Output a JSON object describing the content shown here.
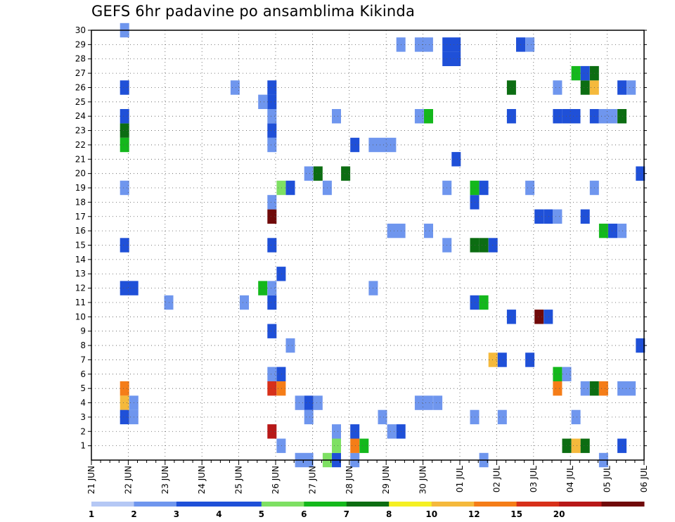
{
  "chart_data": {
    "type": "heatmap",
    "title": "GEFS 6hr padavine po ansamblima Kikinda",
    "x_tick_labels": [
      "21 JUN",
      "22 JUN",
      "23 JUN",
      "24 JUN",
      "25 JUN",
      "26 JUN",
      "27 JUN",
      "28 JUN",
      "29 JUN",
      "30 JUN",
      "01 JUL",
      "02 JUL",
      "03 JUL",
      "04 JUL",
      "05 JUL",
      "06 JUL"
    ],
    "x_ticks_per_day": 4,
    "x_range_steps": [
      0,
      60
    ],
    "y_tick_labels": [
      "1",
      "2",
      "3",
      "4",
      "5",
      "6",
      "7",
      "8",
      "9",
      "10",
      "11",
      "12",
      "13",
      "14",
      "15",
      "16",
      "17",
      "18",
      "19",
      "20",
      "21",
      "22",
      "23",
      "24",
      "25",
      "26",
      "27",
      "28",
      "29",
      "30"
    ],
    "grid": true,
    "color_scale": {
      "labels": [
        "1",
        "2",
        "3",
        "4",
        "5",
        "6",
        "7",
        "8",
        "10",
        "12",
        "15",
        "20"
      ],
      "colors": [
        "#b5c8f5",
        "#6f96ee",
        "#1f50d8",
        "#1f50d8",
        "#7ee063",
        "#14b81c",
        "#0c6d12",
        "#f5f022",
        "#f5b93c",
        "#f57d18",
        "#d8301a",
        "#b81818",
        "#700a0a"
      ]
    },
    "cells": [
      {
        "t": 3.6,
        "m": 30,
        "c": 1,
        "w": 1
      },
      {
        "t": 3.6,
        "m": 5,
        "c": 9
      },
      {
        "t": 3.6,
        "m": 4,
        "c": 8
      },
      {
        "t": 3.6,
        "m": 3,
        "c": 2
      },
      {
        "t": 3.6,
        "m": 12,
        "c": 3,
        "w": 2
      },
      {
        "t": 3.6,
        "m": 15,
        "c": 3
      },
      {
        "t": 3.6,
        "m": 19,
        "c": 1
      },
      {
        "t": 3.6,
        "m": 22,
        "c": 5
      },
      {
        "t": 3.6,
        "m": 23,
        "c": 6
      },
      {
        "t": 3.6,
        "m": 24,
        "c": 3
      },
      {
        "t": 3.6,
        "m": 26,
        "c": 2
      },
      {
        "t": 4.6,
        "m": 4,
        "c": 1
      },
      {
        "t": 4.6,
        "m": 3,
        "c": 1
      },
      {
        "t": 8.4,
        "m": 11,
        "c": 1
      },
      {
        "t": 15.6,
        "m": 26,
        "c": 1
      },
      {
        "t": 16.6,
        "m": 11,
        "c": 1
      },
      {
        "t": 18.6,
        "m": 12,
        "c": 5
      },
      {
        "t": 18.6,
        "m": 25,
        "c": 1
      },
      {
        "t": 19.6,
        "m": 2,
        "c": 11
      },
      {
        "t": 19.6,
        "m": 5,
        "c": 10
      },
      {
        "t": 19.6,
        "m": 6,
        "c": 1
      },
      {
        "t": 19.6,
        "m": 9,
        "c": 2
      },
      {
        "t": 19.6,
        "m": 11,
        "c": 3
      },
      {
        "t": 19.6,
        "m": 12,
        "c": 1
      },
      {
        "t": 19.6,
        "m": 15,
        "c": 2
      },
      {
        "t": 19.6,
        "m": 17,
        "c": 12
      },
      {
        "t": 19.6,
        "m": 18,
        "c": 1
      },
      {
        "t": 19.6,
        "m": 22,
        "c": 1
      },
      {
        "t": 19.6,
        "m": 23,
        "c": 2
      },
      {
        "t": 19.6,
        "m": 24,
        "c": 1
      },
      {
        "t": 19.6,
        "m": 25,
        "c": 3
      },
      {
        "t": 19.6,
        "m": 26,
        "c": 3
      },
      {
        "t": 20.6,
        "m": 1,
        "c": 1
      },
      {
        "t": 20.6,
        "m": 5,
        "c": 9
      },
      {
        "t": 20.6,
        "m": 6,
        "c": 2
      },
      {
        "t": 20.6,
        "m": 13,
        "c": 3
      },
      {
        "t": 20.6,
        "m": 19,
        "c": 4
      },
      {
        "t": 21.6,
        "m": 8,
        "c": 1
      },
      {
        "t": 21.6,
        "m": 19,
        "c": 2
      },
      {
        "t": 22.6,
        "m": 0,
        "c": 1,
        "w": 2
      },
      {
        "t": 22.6,
        "m": 4,
        "c": 1
      },
      {
        "t": 23.6,
        "m": 4,
        "c": 2
      },
      {
        "t": 24.6,
        "m": 4,
        "c": 1
      },
      {
        "t": 23.6,
        "m": 3,
        "c": 1
      },
      {
        "t": 23.6,
        "m": 20,
        "c": 1
      },
      {
        "t": 24.6,
        "m": 20,
        "c": 6
      },
      {
        "t": 25.6,
        "m": 0,
        "c": 4
      },
      {
        "t": 25.6,
        "m": 19,
        "c": 1
      },
      {
        "t": 26.6,
        "m": 0,
        "c": 3
      },
      {
        "t": 26.6,
        "m": 1,
        "c": 4
      },
      {
        "t": 26.6,
        "m": 2,
        "c": 1
      },
      {
        "t": 26.6,
        "m": 24,
        "c": 1
      },
      {
        "t": 27.6,
        "m": 20,
        "c": 6
      },
      {
        "t": 28.6,
        "m": 0,
        "c": 1
      },
      {
        "t": 28.6,
        "m": 1,
        "c": 9
      },
      {
        "t": 28.6,
        "m": 2,
        "c": 2
      },
      {
        "t": 28.6,
        "m": 22,
        "c": 2
      },
      {
        "t": 29.6,
        "m": 1,
        "c": 5
      },
      {
        "t": 30.6,
        "m": 12,
        "c": 1
      },
      {
        "t": 30.6,
        "m": 22,
        "c": 1,
        "w": 3
      },
      {
        "t": 31.6,
        "m": 3,
        "c": 1
      },
      {
        "t": 32.6,
        "m": 2,
        "c": 1
      },
      {
        "t": 32.6,
        "m": 16,
        "c": 1,
        "w": 2
      },
      {
        "t": 33.6,
        "m": 2,
        "c": 3
      },
      {
        "t": 33.6,
        "m": 29,
        "c": 1
      },
      {
        "t": 35.6,
        "m": 4,
        "c": 1,
        "w": 2
      },
      {
        "t": 35.6,
        "m": 24,
        "c": 1
      },
      {
        "t": 35.6,
        "m": 29,
        "c": 1,
        "w": 2
      },
      {
        "t": 36.6,
        "m": 24,
        "c": 5
      },
      {
        "t": 36.6,
        "m": 16,
        "c": 1
      },
      {
        "t": 37.6,
        "m": 4,
        "c": 1
      },
      {
        "t": 38.6,
        "m": 29,
        "c": 3,
        "w": 2
      },
      {
        "t": 38.6,
        "m": 28,
        "c": 2,
        "w": 2
      },
      {
        "t": 38.6,
        "m": 15,
        "c": 1
      },
      {
        "t": 38.6,
        "m": 19,
        "c": 1
      },
      {
        "t": 39.6,
        "m": 21,
        "c": 2
      },
      {
        "t": 41.6,
        "m": 3,
        "c": 1
      },
      {
        "t": 41.6,
        "m": 11,
        "c": 2
      },
      {
        "t": 41.6,
        "m": 15,
        "c": 6
      },
      {
        "t": 41.6,
        "m": 18,
        "c": 2
      },
      {
        "t": 41.6,
        "m": 19,
        "c": 5
      },
      {
        "t": 42.6,
        "m": 0,
        "c": 1
      },
      {
        "t": 42.6,
        "m": 11,
        "c": 5
      },
      {
        "t": 42.6,
        "m": 15,
        "c": 6
      },
      {
        "t": 42.6,
        "m": 19,
        "c": 2
      },
      {
        "t": 43.6,
        "m": 7,
        "c": 8
      },
      {
        "t": 43.6,
        "m": 15,
        "c": 2
      },
      {
        "t": 44.6,
        "m": 7,
        "c": 3
      },
      {
        "t": 44.6,
        "m": 3,
        "c": 1
      },
      {
        "t": 45.6,
        "m": 10,
        "c": 2
      },
      {
        "t": 45.6,
        "m": 24,
        "c": 2
      },
      {
        "t": 45.6,
        "m": 26,
        "c": 6
      },
      {
        "t": 46.6,
        "m": 29,
        "c": 3
      },
      {
        "t": 47.6,
        "m": 7,
        "c": 2
      },
      {
        "t": 47.6,
        "m": 19,
        "c": 1
      },
      {
        "t": 47.6,
        "m": 29,
        "c": 1
      },
      {
        "t": 48.6,
        "m": 10,
        "c": 12
      },
      {
        "t": 48.6,
        "m": 17,
        "c": 3
      },
      {
        "t": 49.6,
        "m": 10,
        "c": 3
      },
      {
        "t": 49.6,
        "m": 17,
        "c": 2
      },
      {
        "t": 50.6,
        "m": 17,
        "c": 1
      },
      {
        "t": 50.6,
        "m": 26,
        "c": 1
      },
      {
        "t": 50.6,
        "m": 24,
        "c": 3
      },
      {
        "t": 50.6,
        "m": 6,
        "c": 5
      },
      {
        "t": 50.6,
        "m": 5,
        "c": 9
      },
      {
        "t": 51.6,
        "m": 1,
        "c": 6
      },
      {
        "t": 51.6,
        "m": 6,
        "c": 1
      },
      {
        "t": 51.6,
        "m": 24,
        "c": 2,
        "w": 2
      },
      {
        "t": 52.6,
        "m": 1,
        "c": 8
      },
      {
        "t": 52.6,
        "m": 3,
        "c": 1
      },
      {
        "t": 52.6,
        "m": 27,
        "c": 5
      },
      {
        "t": 53.6,
        "m": 1,
        "c": 6
      },
      {
        "t": 53.6,
        "m": 5,
        "c": 1
      },
      {
        "t": 53.6,
        "m": 17,
        "c": 3
      },
      {
        "t": 53.6,
        "m": 26,
        "c": 6
      },
      {
        "t": 53.6,
        "m": 27,
        "c": 3
      },
      {
        "t": 54.6,
        "m": 5,
        "c": 6
      },
      {
        "t": 54.6,
        "m": 26,
        "c": 8
      },
      {
        "t": 54.6,
        "m": 27,
        "c": 6
      },
      {
        "t": 54.6,
        "m": 19,
        "c": 1
      },
      {
        "t": 54.6,
        "m": 24,
        "c": 2
      },
      {
        "t": 55.6,
        "m": 0,
        "c": 1
      },
      {
        "t": 55.6,
        "m": 5,
        "c": 9
      },
      {
        "t": 55.6,
        "m": 16,
        "c": 5
      },
      {
        "t": 55.6,
        "m": 24,
        "c": 1,
        "w": 2
      },
      {
        "t": 56.6,
        "m": 16,
        "c": 2
      },
      {
        "t": 57.6,
        "m": 1,
        "c": 3
      },
      {
        "t": 57.6,
        "m": 5,
        "c": 1,
        "w": 2
      },
      {
        "t": 57.6,
        "m": 16,
        "c": 1
      },
      {
        "t": 57.6,
        "m": 24,
        "c": 6
      },
      {
        "t": 57.6,
        "m": 26,
        "c": 3
      },
      {
        "t": 58.6,
        "m": 26,
        "c": 1
      },
      {
        "t": 59.6,
        "m": 8,
        "c": 3
      },
      {
        "t": 59.6,
        "m": 20,
        "c": 2
      }
    ]
  }
}
